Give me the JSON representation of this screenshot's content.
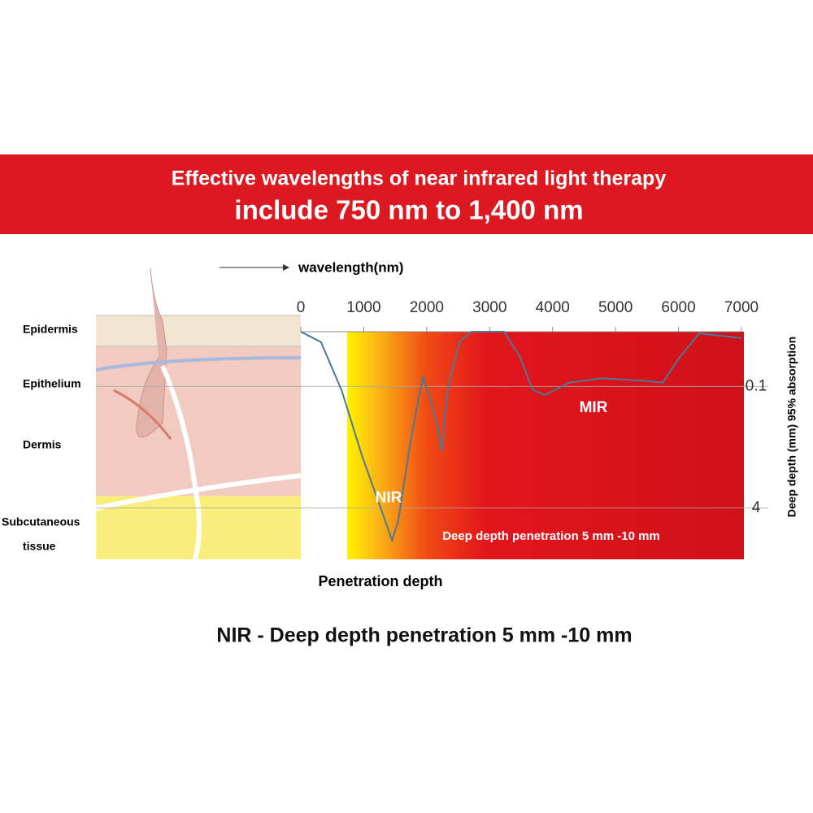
{
  "chart_data": {
    "type": "line",
    "title": "Effective wavelengths of near infrared light therapy",
    "subtitle": "include 750 nm to 1,400 nm",
    "x_label": "wavelength(nm)",
    "x_bottom_label": "Penetration depth",
    "y_label": "Deep depth (mm) 95% absorption",
    "annotations": [
      "NIR",
      "MIR",
      "Deep depth penetration 5 mm -10 mm"
    ],
    "layers": [
      "Epidermis",
      "Epithelium",
      "Dermis",
      "Subcutaneous",
      "tissue"
    ],
    "caption": "NIR - Deep depth penetration 5 mm -10 mm",
    "x": [
      0,
      320,
      650,
      970,
      1290,
      1450,
      1550,
      1750,
      1940,
      2130,
      2240,
      2330,
      2520,
      2710,
      3230,
      3490,
      3680,
      3880,
      4260,
      4780,
      5430,
      5750,
      6010,
      6330,
      7000
    ],
    "values": [
      0.019,
      0.026,
      0.113,
      0.81,
      4.5,
      10.7,
      5.8,
      0.49,
      0.073,
      0.24,
      0.72,
      0.11,
      0.026,
      0.019,
      0.019,
      0.042,
      0.11,
      0.13,
      0.089,
      0.078,
      0.084,
      0.089,
      0.042,
      0.02,
      0.023
    ],
    "color": "#4a7a96",
    "xlim": [
      0,
      7000
    ],
    "xticks": [
      0,
      1000,
      2000,
      3000,
      4000,
      5000,
      6000,
      7000
    ],
    "ylim": [
      0.019,
      19
    ],
    "yticks": [
      0.1,
      4
    ],
    "log_y": true,
    "y_inverted": true,
    "grid": true
  }
}
